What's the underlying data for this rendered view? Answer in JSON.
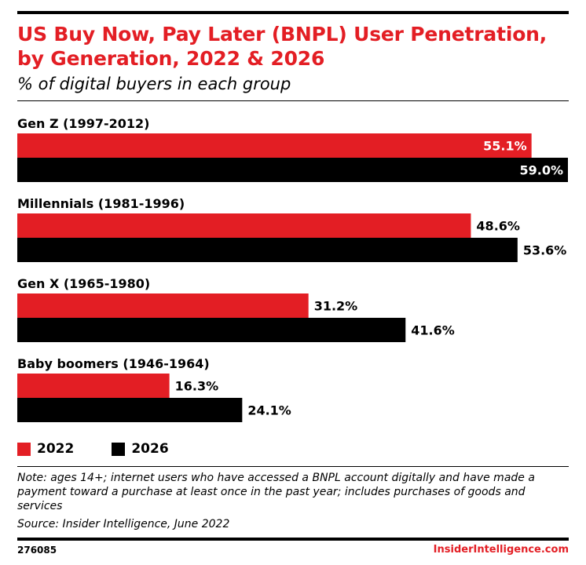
{
  "title": "US Buy Now, Pay Later (BNPL) User Penetration, by Generation, 2022 & 2026",
  "subtitle": "% of digital buyers in each group",
  "chart_data": {
    "type": "bar",
    "orientation": "horizontal",
    "categories": [
      "Gen Z (1997-2012)",
      "Millennials (1981-1996)",
      "Gen X (1965-1980)",
      "Baby boomers (1946-1964)"
    ],
    "series": [
      {
        "name": "2022",
        "values": [
          55.1,
          48.6,
          31.2,
          16.3
        ],
        "labels": [
          "55.1%",
          "48.6%",
          "31.2%",
          "16.3%"
        ],
        "color": "#e31e24"
      },
      {
        "name": "2026",
        "values": [
          59.0,
          53.6,
          41.6,
          24.1
        ],
        "labels": [
          "59.0%",
          "53.6%",
          "41.6%",
          "24.1%"
        ],
        "color": "#000000"
      }
    ],
    "xlim": [
      0,
      59.0
    ],
    "grid": false,
    "legend": "bottom-left"
  },
  "note": "Note: ages 14+; internet users who have accessed a BNPL account digitally and have made a payment toward a purchase at least once in the past year; includes purchases of goods and services",
  "source": "Source: Insider Intelligence, June 2022",
  "chart_id": "276085",
  "brand": "InsiderIntelligence.com"
}
